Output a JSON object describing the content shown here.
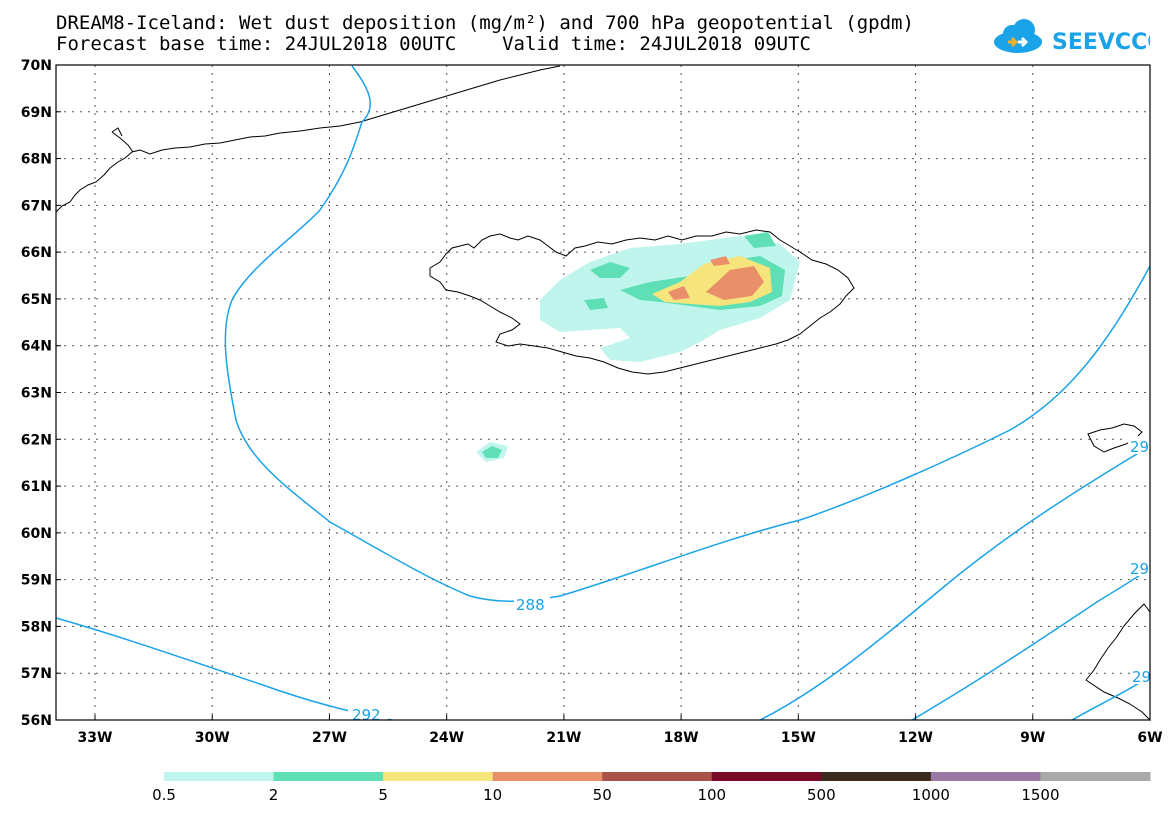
{
  "title": {
    "line1": "DREAM8-Iceland: Wet dust deposition (mg/m²) and 700 hPa geopotential (gpdm)",
    "line2": "Forecast base time: 24JUL2018 00UTC    Valid time: 24JUL2018 09UTC"
  },
  "logo": {
    "text": "SEEVCCC",
    "icon": "cloud-icon",
    "color": "#1aa3e8"
  },
  "axes": {
    "lat_labels": [
      "70N",
      "69N",
      "68N",
      "67N",
      "66N",
      "65N",
      "64N",
      "63N",
      "62N",
      "61N",
      "60N",
      "59N",
      "58N",
      "57N",
      "56N"
    ],
    "lon_labels": [
      "33W",
      "30W",
      "27W",
      "24W",
      "21W",
      "18W",
      "15W",
      "12W",
      "9W",
      "6W"
    ]
  },
  "contours": {
    "color": "#1aa3e8",
    "labels": [
      "288",
      "292",
      "29",
      "29",
      "29"
    ]
  },
  "colorbar": {
    "colors": [
      "#bff5ec",
      "#5edfb6",
      "#f6e57c",
      "#e9906a",
      "#a8524a",
      "#7a0a2a",
      "#3b2a1e",
      "#9a78a6",
      "#a9a9a9"
    ],
    "labels": [
      "0.5",
      "2",
      "5",
      "10",
      "50",
      "100",
      "500",
      "1000",
      "1500"
    ]
  }
}
